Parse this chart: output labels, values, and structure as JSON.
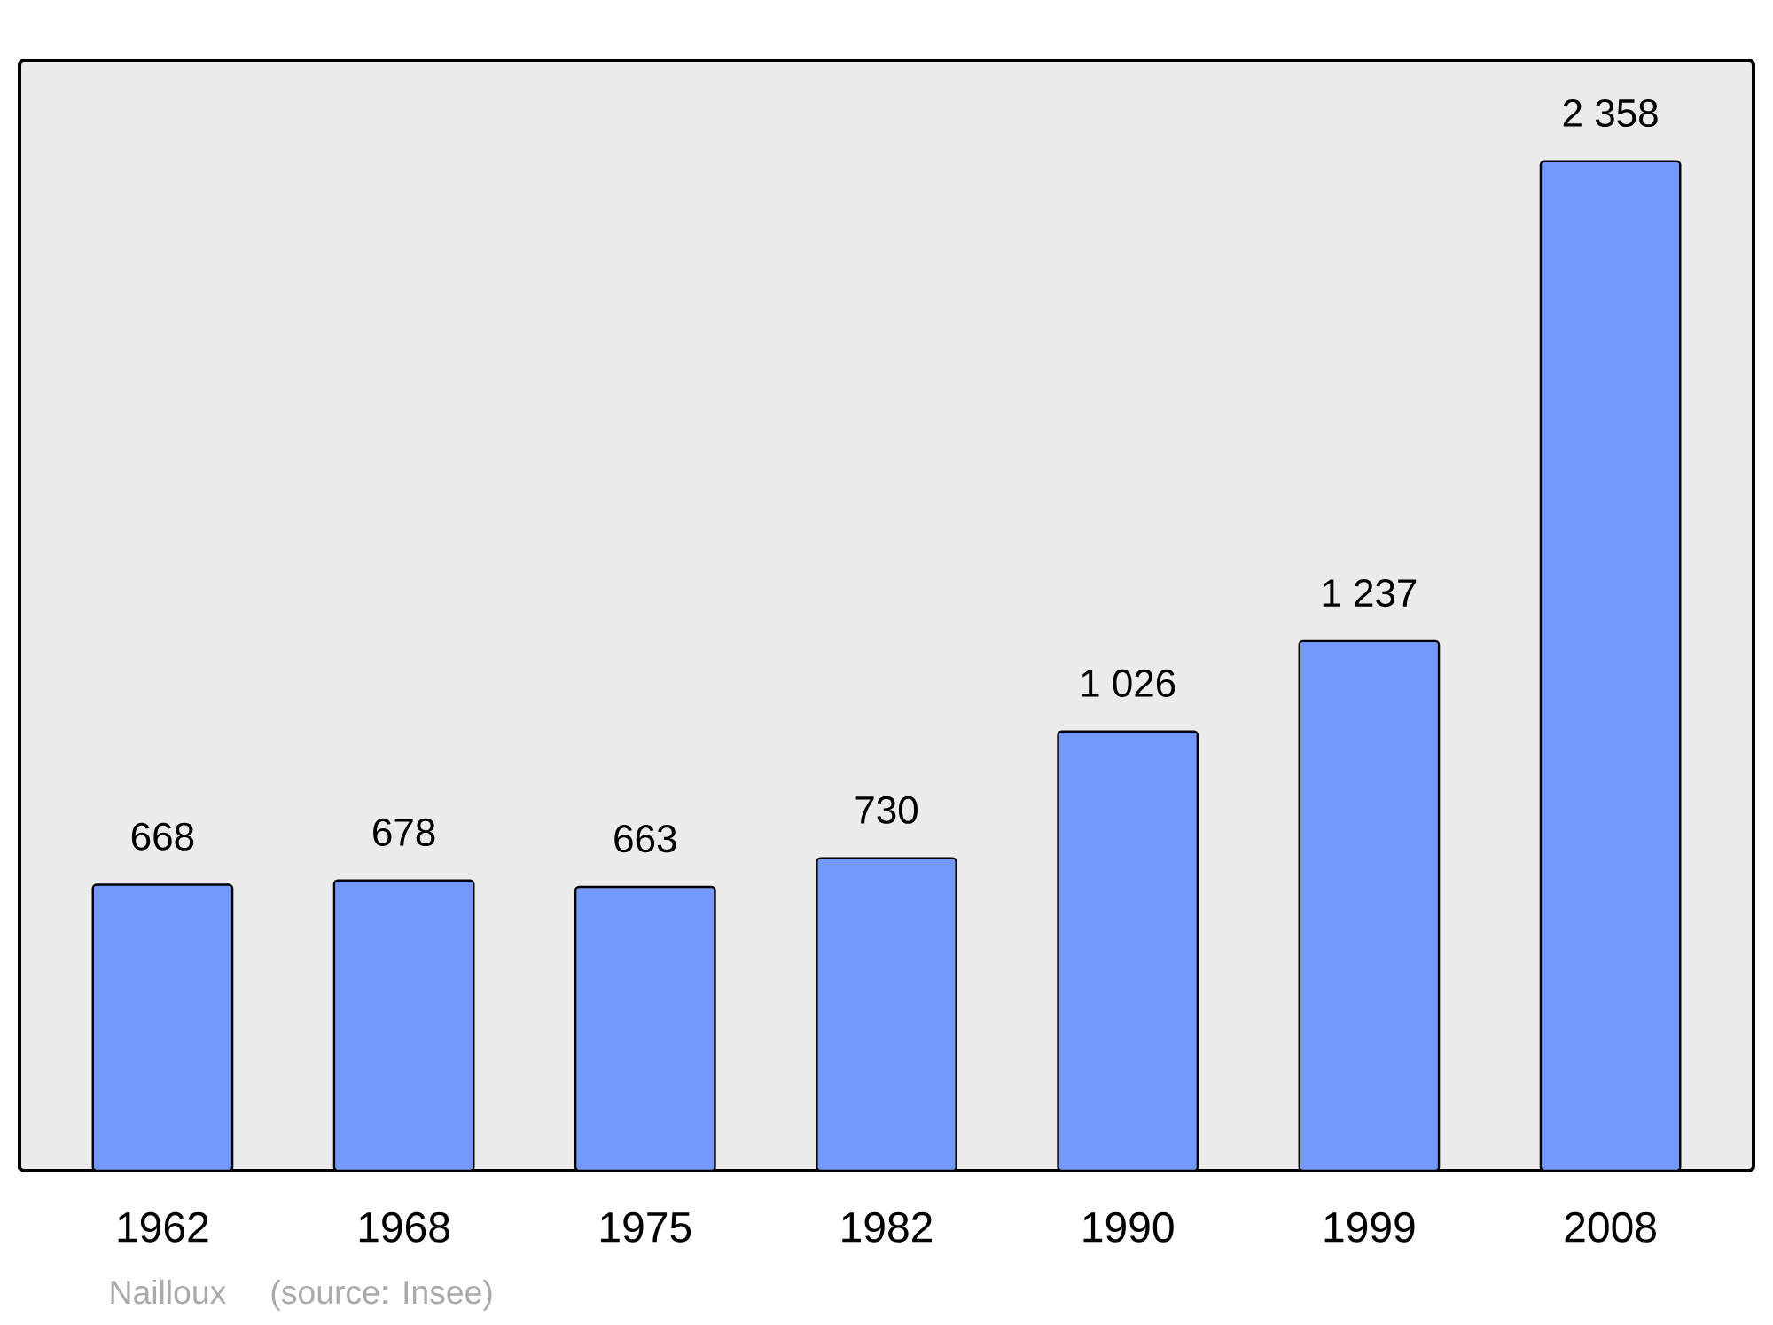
{
  "chart_data": {
    "type": "bar",
    "categories": [
      "1962",
      "1968",
      "1975",
      "1982",
      "1990",
      "1999",
      "2008"
    ],
    "values": [
      668,
      678,
      663,
      730,
      1026,
      1237,
      2358
    ],
    "value_labels": [
      "668",
      "678",
      "663",
      "730",
      "1 026",
      "1 237",
      "2 358"
    ],
    "color": "#7399ff",
    "annotations": [
      "Nailloux",
      "(source: Insee)"
    ]
  }
}
